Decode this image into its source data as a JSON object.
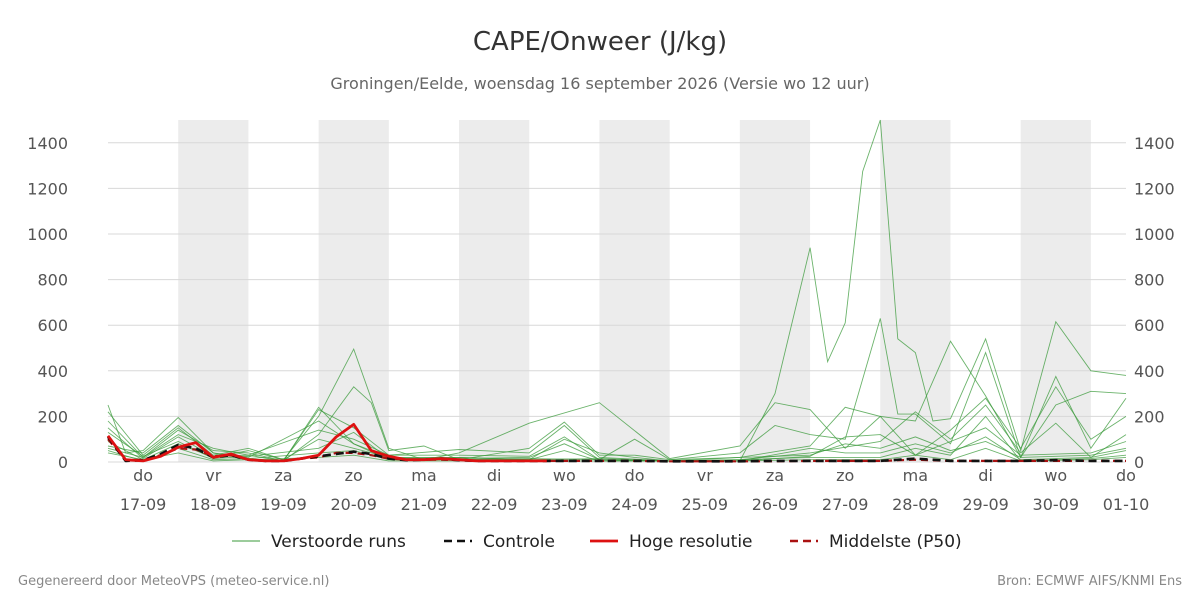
{
  "chart_data": {
    "type": "line",
    "title": "CAPE/Onweer (J/kg)",
    "subtitle": "Groningen/Eelde, woensdag 16 september 2026 (Versie wo 12 uur)",
    "ylim": [
      0,
      1500
    ],
    "yticks": [
      0,
      200,
      400,
      600,
      800,
      1000,
      1200,
      1400
    ],
    "grid": true,
    "x_range_days": [
      0,
      14.5
    ],
    "x_ticks": [
      {
        "day": "do",
        "date": "17-09"
      },
      {
        "day": "vr",
        "date": "18-09"
      },
      {
        "day": "za",
        "date": "19-09"
      },
      {
        "day": "zo",
        "date": "20-09"
      },
      {
        "day": "ma",
        "date": "21-09"
      },
      {
        "day": "di",
        "date": "22-09"
      },
      {
        "day": "wo",
        "date": "23-09"
      },
      {
        "day": "do",
        "date": "24-09"
      },
      {
        "day": "vr",
        "date": "25-09"
      },
      {
        "day": "za",
        "date": "26-09"
      },
      {
        "day": "zo",
        "date": "27-09"
      },
      {
        "day": "ma",
        "date": "28-09"
      },
      {
        "day": "di",
        "date": "29-09"
      },
      {
        "day": "wo",
        "date": "30-09"
      },
      {
        "day": "do",
        "date": "01-10"
      }
    ],
    "legend": [
      {
        "label": "Verstoorde runs",
        "color": "#3a9a3a",
        "style": "thin"
      },
      {
        "label": "Controle",
        "color": "#111111",
        "style": "dashed"
      },
      {
        "label": "Hoge resolutie",
        "color": "#dd1111",
        "style": "solid"
      },
      {
        "label": "Middelste (P50)",
        "color": "#aa1111",
        "style": "dashed"
      }
    ],
    "legend_position": "bottom",
    "series": [
      {
        "name": "Hoge resolutie",
        "color": "#dd1111",
        "x": [
          0,
          0.25,
          0.5,
          0.75,
          1,
          1.25,
          1.5,
          1.75,
          2,
          2.25,
          2.5,
          2.75,
          3,
          3.25,
          3.5,
          3.75,
          4,
          4.25,
          4.5,
          4.75,
          5,
          5.25,
          5.5,
          5.75,
          6,
          6.25
        ],
        "y": [
          115,
          10,
          5,
          25,
          65,
          85,
          20,
          35,
          10,
          5,
          5,
          15,
          30,
          110,
          165,
          50,
          25,
          10,
          10,
          15,
          10,
          5,
          5,
          5,
          5,
          5
        ]
      },
      {
        "name": "Middelste (P50)",
        "color": "#aa1111",
        "x": [
          0,
          0.25,
          0.5,
          0.75,
          1,
          1.25,
          1.5,
          1.75,
          2,
          2.25,
          2.5,
          2.75,
          3,
          3.25,
          3.5,
          3.75,
          4,
          4.25,
          4.5,
          4.75,
          5,
          5.25,
          5.5,
          5.75,
          6,
          6.5,
          7,
          7.5,
          8,
          8.5,
          9,
          9.5,
          10,
          10.5,
          11,
          11.5,
          12,
          12.5,
          13,
          13.5,
          14,
          14.5
        ],
        "y": [
          100,
          8,
          10,
          30,
          60,
          55,
          25,
          30,
          10,
          5,
          5,
          15,
          20,
          40,
          40,
          30,
          15,
          10,
          10,
          10,
          8,
          5,
          5,
          5,
          5,
          5,
          5,
          5,
          3,
          3,
          3,
          3,
          5,
          5,
          5,
          10,
          5,
          5,
          5,
          5,
          5,
          5
        ]
      },
      {
        "name": "Controle",
        "color": "#111111",
        "x": [
          0,
          0.25,
          0.5,
          0.75,
          1,
          1.25,
          1.5,
          1.75,
          2,
          2.25,
          2.5,
          2.75,
          3,
          3.25,
          3.5,
          3.75,
          4,
          4.25,
          4.5,
          4.75,
          5,
          5.25,
          5.5,
          5.75,
          6,
          6.5,
          7,
          7.5,
          8,
          8.5,
          9,
          9.5,
          10,
          10.5,
          11,
          11.5,
          12,
          12.5,
          13,
          13.5,
          14,
          14.5
        ],
        "y": [
          110,
          5,
          8,
          35,
          75,
          60,
          20,
          30,
          10,
          5,
          5,
          15,
          25,
          35,
          45,
          35,
          15,
          8,
          10,
          15,
          8,
          5,
          5,
          5,
          5,
          5,
          5,
          5,
          3,
          3,
          3,
          5,
          5,
          5,
          5,
          15,
          5,
          5,
          5,
          8,
          5,
          5
        ]
      }
    ],
    "ensemble_series": [
      {
        "x": [
          0,
          0.25,
          0.5,
          1,
          1.5,
          2,
          2.5,
          3,
          3.5,
          4,
          5,
          6,
          7,
          8,
          9,
          9.5,
          10,
          10.25,
          10.5,
          10.75,
          11,
          11.25,
          11.5,
          11.75,
          12,
          12.5,
          13,
          13.5,
          14,
          14.5
        ],
        "y": [
          250,
          40,
          50,
          195,
          40,
          10,
          5,
          240,
          80,
          20,
          10,
          15,
          10,
          5,
          5,
          300,
          940,
          440,
          610,
          1275,
          1500,
          540,
          480,
          180,
          190,
          540,
          50,
          615,
          400,
          380
        ]
      },
      {
        "x": [
          0,
          0.5,
          1,
          1.5,
          2,
          2.5,
          3,
          3.5,
          4,
          4.5,
          5,
          6,
          7,
          8,
          9,
          9.5,
          10,
          10.5,
          11,
          11.5,
          12,
          12.5,
          13,
          13.5,
          14,
          14.5
        ],
        "y": [
          220,
          30,
          150,
          30,
          60,
          10,
          200,
          495,
          60,
          10,
          40,
          170,
          260,
          15,
          70,
          260,
          230,
          60,
          200,
          180,
          530,
          290,
          20,
          250,
          310,
          300
        ]
      },
      {
        "x": [
          0,
          0.5,
          1,
          1.5,
          2,
          2.5,
          3,
          3.5,
          3.75,
          4,
          4.5,
          5,
          6,
          6.5,
          7,
          7.5,
          8,
          9,
          9.5,
          10,
          10.5,
          11,
          11.25,
          11.5,
          12,
          12.5,
          13,
          13.5,
          14,
          14.5
        ],
        "y": [
          180,
          20,
          140,
          50,
          40,
          5,
          120,
          330,
          260,
          50,
          70,
          10,
          60,
          175,
          30,
          30,
          10,
          40,
          160,
          120,
          100,
          630,
          210,
          210,
          80,
          480,
          20,
          375,
          60,
          280
        ]
      },
      {
        "x": [
          0,
          0.5,
          1,
          1.5,
          2,
          2.5,
          3,
          3.5,
          4,
          5,
          6,
          6.5,
          7,
          8,
          9,
          10,
          10.5,
          11,
          11.5,
          12,
          12.5,
          13,
          13.5,
          14,
          14.5
        ],
        "y": [
          150,
          15,
          110,
          25,
          30,
          5,
          230,
          150,
          30,
          55,
          40,
          160,
          20,
          5,
          20,
          70,
          240,
          200,
          30,
          140,
          280,
          60,
          330,
          100,
          200
        ]
      },
      {
        "x": [
          0,
          0.5,
          1,
          1.5,
          2,
          2.5,
          3,
          3.5,
          4,
          5,
          6,
          6.5,
          7,
          7.5,
          8,
          9,
          10,
          11,
          11.5,
          12,
          12.5,
          13,
          13.5,
          14,
          14.5
        ],
        "y": [
          90,
          10,
          80,
          20,
          50,
          10,
          100,
          60,
          20,
          20,
          10,
          100,
          40,
          20,
          5,
          10,
          40,
          90,
          220,
          100,
          250,
          40,
          170,
          20,
          120
        ]
      },
      {
        "x": [
          0,
          0.5,
          1,
          1.5,
          2,
          3,
          3.5,
          4,
          5,
          6,
          6.5,
          7,
          8,
          9,
          10,
          10.5,
          11,
          11.5,
          12,
          12.5,
          13,
          14,
          14.5
        ],
        "y": [
          70,
          40,
          160,
          40,
          20,
          180,
          80,
          10,
          15,
          20,
          80,
          10,
          5,
          5,
          25,
          110,
          120,
          30,
          90,
          150,
          30,
          40,
          90
        ]
      },
      {
        "x": [
          0,
          0.5,
          1,
          1.5,
          2,
          3,
          3.5,
          4,
          5,
          6,
          6.5,
          7,
          7.5,
          8,
          9,
          10,
          10.5,
          11,
          11.5,
          12,
          12.5,
          13,
          14,
          14.5
        ],
        "y": [
          60,
          20,
          120,
          60,
          30,
          140,
          100,
          30,
          30,
          25,
          110,
          10,
          100,
          10,
          20,
          30,
          80,
          60,
          110,
          50,
          90,
          20,
          30,
          60
        ]
      },
      {
        "x": [
          0,
          0.5,
          1,
          1.5,
          2,
          3,
          3.5,
          4,
          5,
          6,
          6.5,
          7,
          8,
          9,
          10,
          10.5,
          11,
          11.5,
          12,
          12.5,
          13,
          14,
          14.5
        ],
        "y": [
          130,
          25,
          90,
          15,
          25,
          60,
          130,
          15,
          20,
          10,
          50,
          5,
          5,
          5,
          60,
          40,
          40,
          80,
          40,
          110,
          10,
          20,
          50
        ]
      },
      {
        "x": [
          0,
          0.5,
          1,
          1.5,
          2,
          3,
          3.5,
          4,
          5,
          6,
          7,
          8,
          9,
          10,
          11,
          11.5,
          12,
          12.5,
          13,
          14,
          14.5
        ],
        "y": [
          50,
          5,
          60,
          10,
          15,
          40,
          50,
          10,
          10,
          10,
          15,
          5,
          10,
          20,
          20,
          60,
          30,
          200,
          5,
          15,
          30
        ]
      },
      {
        "x": [
          0,
          0.5,
          1,
          1.5,
          2,
          3,
          3.5,
          4,
          5,
          6,
          7,
          8,
          9,
          10,
          11,
          11.5,
          12,
          12.5,
          13,
          14,
          14.5
        ],
        "y": [
          40,
          10,
          40,
          5,
          10,
          20,
          30,
          5,
          5,
          5,
          5,
          5,
          5,
          10,
          10,
          30,
          10,
          60,
          5,
          10,
          20
        ]
      }
    ]
  },
  "footer": {
    "left": "Gegenereerd door MeteoVPS (meteo-service.nl)",
    "right": "Bron: ECMWF AIFS/KNMI Ens"
  }
}
